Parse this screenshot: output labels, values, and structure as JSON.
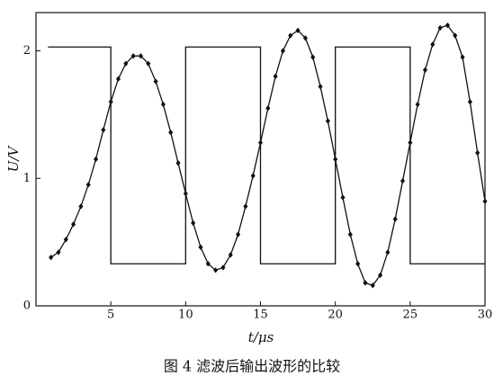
{
  "chart_data": {
    "type": "line",
    "ylabel": "U/V",
    "xlabel": "t/μs",
    "caption": "图 4  滤波后输出波形的比较",
    "xlim": [
      0,
      30
    ],
    "ylim": [
      0,
      2.3
    ],
    "xticks": [
      5,
      10,
      15,
      20,
      25,
      30
    ],
    "yticks": [
      0,
      1,
      2
    ],
    "grid": false,
    "series": [
      {
        "color": "#111111",
        "marker": "none",
        "x": [
          0.8,
          5,
          5,
          10,
          10,
          15,
          15,
          20,
          20,
          25,
          25,
          30
        ],
        "values": [
          2.03,
          2.03,
          0.33,
          0.33,
          2.03,
          2.03,
          0.33,
          0.33,
          2.03,
          2.03,
          0.33,
          0.33
        ]
      },
      {
        "color": "#111111",
        "marker": "diamond",
        "x": [
          1,
          1.5,
          2,
          2.5,
          3,
          3.5,
          4,
          4.5,
          5,
          5.5,
          6,
          6.5,
          7,
          7.5,
          8,
          8.5,
          9,
          9.5,
          10,
          10.5,
          11,
          11.5,
          12,
          12.5,
          13,
          13.5,
          14,
          14.5,
          15,
          15.5,
          16,
          16.5,
          17,
          17.5,
          18,
          18.5,
          19,
          19.5,
          20,
          20.5,
          21,
          21.5,
          22,
          22.5,
          23,
          23.5,
          24,
          24.5,
          25,
          25.5,
          26,
          26.5,
          27,
          27.5,
          28,
          28.5,
          29,
          29.5,
          30
        ],
        "values": [
          0.38,
          0.42,
          0.52,
          0.64,
          0.78,
          0.95,
          1.15,
          1.38,
          1.6,
          1.78,
          1.9,
          1.96,
          1.96,
          1.9,
          1.76,
          1.58,
          1.36,
          1.12,
          0.88,
          0.65,
          0.46,
          0.33,
          0.28,
          0.3,
          0.4,
          0.56,
          0.78,
          1.02,
          1.28,
          1.55,
          1.8,
          2.0,
          2.12,
          2.16,
          2.1,
          1.95,
          1.72,
          1.45,
          1.15,
          0.85,
          0.56,
          0.33,
          0.18,
          0.16,
          0.24,
          0.42,
          0.68,
          0.98,
          1.28,
          1.58,
          1.85,
          2.05,
          2.18,
          2.2,
          2.12,
          1.95,
          1.6,
          1.2,
          0.82
        ]
      }
    ]
  }
}
